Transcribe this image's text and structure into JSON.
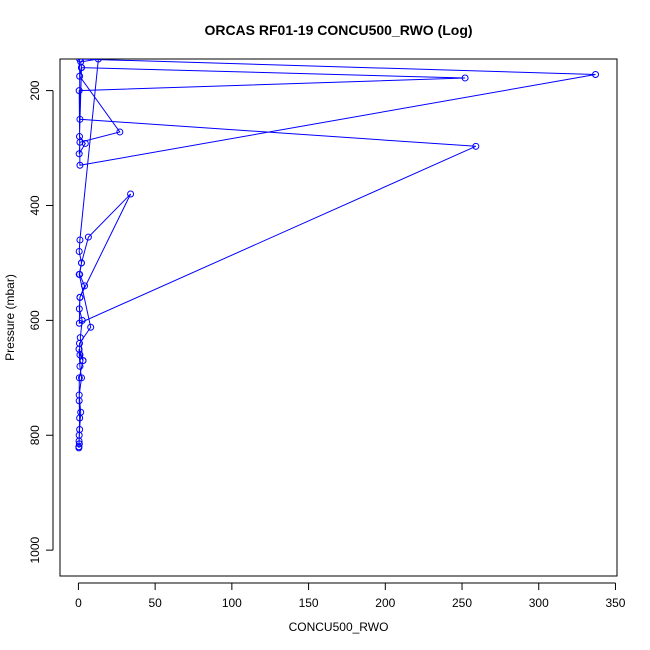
{
  "chart_data": {
    "type": "line",
    "title": "ORCAS RF01-19 CONCU500_RWO (Log)",
    "xlabel": "CONCU500_RWO",
    "ylabel": "Pressure (mbar)",
    "xlim": [
      -12,
      351
    ],
    "ylim": [
      1045,
      145
    ],
    "y_inverted": true,
    "grid": false,
    "x_ticks": [
      0,
      50,
      100,
      150,
      200,
      250,
      300,
      350
    ],
    "y_ticks": [
      200,
      400,
      600,
      800,
      1000
    ],
    "series": [
      {
        "color": "#0000ff",
        "marker": "open-circle",
        "x": [
          0.3,
          0.8,
          1.5,
          0.5,
          2.0,
          1.0,
          0.4,
          3.0,
          1.2,
          2.5,
          0.6,
          1.0,
          4.0,
          0.8,
          2.0,
          0.5,
          1.0,
          13.0,
          1.5,
          2.0,
          0.8,
          27.0,
          1.0,
          0.5,
          4.5,
          0.7,
          2.0,
          252.0,
          0.5,
          1.0,
          337.0,
          0.8,
          1.0,
          259.0,
          0.6,
          1.0,
          34.0,
          6.5,
          2.0,
          0.5,
          8.0,
          0.7,
          1.0,
          3.0,
          0.6,
          0.5,
          0.8,
          0.5,
          0.4,
          0.6,
          0.3
        ],
        "y": [
          820,
          790,
          760,
          730,
          700,
          680,
          650,
          670,
          630,
          600,
          580,
          560,
          540,
          520,
          500,
          480,
          460,
          145,
          150,
          160,
          175,
          272,
          290,
          310,
          292,
          280,
          160,
          178,
          200,
          330,
          172,
          145,
          250,
          297,
          605,
          560,
          380,
          455,
          500,
          520,
          612,
          640,
          660,
          670,
          700,
          740,
          770,
          800,
          810,
          815,
          822
        ]
      }
    ]
  }
}
